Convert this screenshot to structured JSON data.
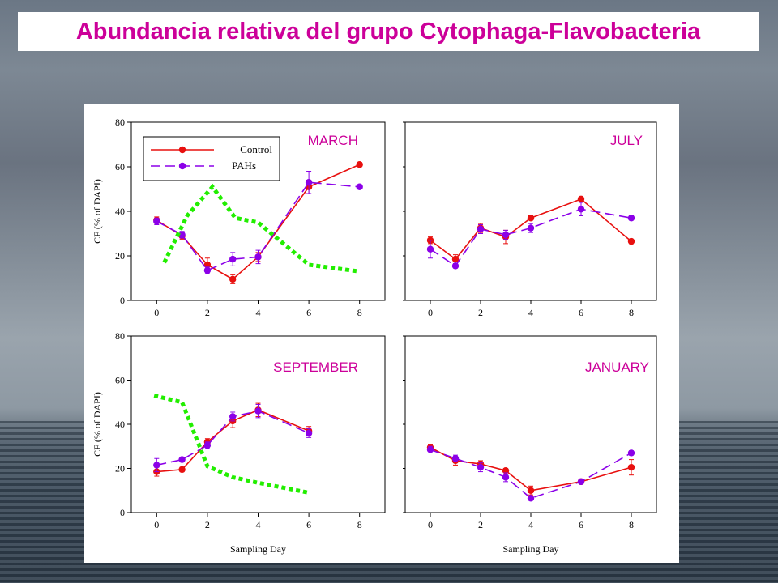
{
  "title": "Abundancia relativa del grupo Cytophaga-Flavobacteria",
  "colors": {
    "control": "#e8100f",
    "pahs": "#8b00e8",
    "dotted": "#22ee00",
    "month_label": "#cc0099"
  },
  "chart_data": [
    {
      "type": "line",
      "panel": "MARCH",
      "xlabel": "",
      "ylabel": "CF (% of DAPI)",
      "xlim": [
        -1,
        9
      ],
      "ylim": [
        0,
        80
      ],
      "xticks": [
        0,
        2,
        4,
        6,
        8
      ],
      "yticks": [
        0,
        20,
        40,
        60,
        80
      ],
      "legend": {
        "placement": "top-left",
        "entries": [
          "Control",
          "PAHs"
        ]
      },
      "series": [
        {
          "name": "Control",
          "style": "solid",
          "x": [
            0,
            1,
            2,
            3,
            4,
            6,
            8
          ],
          "y": [
            36,
            29,
            16,
            9.5,
            19.5,
            51,
            61
          ],
          "err": [
            1.5,
            1.5,
            3,
            2,
            2,
            3,
            1
          ]
        },
        {
          "name": "PAHs",
          "style": "dashed",
          "x": [
            0,
            1,
            2,
            3,
            4,
            6,
            8
          ],
          "y": [
            35.5,
            29.5,
            13.5,
            18.5,
            19.5,
            53,
            51
          ],
          "err": [
            1.5,
            1.5,
            1.5,
            3,
            3,
            5,
            1
          ]
        },
        {
          "style": "dotted",
          "x": [
            0.3,
            1.2,
            2.2,
            3.1,
            4,
            6,
            8
          ],
          "y": [
            17,
            38,
            51,
            37,
            35,
            16,
            13
          ]
        }
      ]
    },
    {
      "type": "line",
      "panel": "JULY",
      "xlabel": "",
      "ylabel": "",
      "xlim": [
        -1,
        9
      ],
      "ylim": [
        0,
        80
      ],
      "xticks": [
        0,
        2,
        4,
        6,
        8
      ],
      "yticks": [],
      "series": [
        {
          "name": "Control",
          "style": "solid",
          "x": [
            0,
            1,
            2,
            3,
            4,
            6,
            8
          ],
          "y": [
            27,
            18.5,
            32.5,
            28.5,
            37,
            45.5,
            26.5
          ],
          "err": [
            1.5,
            2,
            2,
            3,
            1,
            1,
            1
          ]
        },
        {
          "name": "PAHs",
          "style": "dashed",
          "x": [
            0,
            1,
            2,
            3,
            4,
            6,
            8
          ],
          "y": [
            23,
            15.5,
            32,
            29.5,
            32.5,
            41,
            37
          ],
          "err": [
            4,
            1,
            2,
            2,
            2,
            3,
            1
          ]
        }
      ]
    },
    {
      "type": "line",
      "panel": "SEPTEMBER",
      "xlabel": "Sampling Day",
      "ylabel": "CF (% of DAPI)",
      "xlim": [
        -1,
        9
      ],
      "ylim": [
        0,
        80
      ],
      "xticks": [
        0,
        2,
        4,
        6,
        8
      ],
      "yticks": [
        0,
        20,
        40,
        60,
        80
      ],
      "series": [
        {
          "name": "Control",
          "style": "solid",
          "x": [
            0,
            1,
            2,
            3,
            4,
            6
          ],
          "y": [
            18.5,
            19.5,
            32,
            41.5,
            46.5,
            37
          ],
          "err": [
            2,
            1,
            1.5,
            3,
            3,
            2
          ]
        },
        {
          "name": "PAHs",
          "style": "dashed",
          "x": [
            0,
            1,
            2,
            3,
            4,
            6
          ],
          "y": [
            21.5,
            24,
            30.5,
            43.5,
            46,
            36
          ],
          "err": [
            3,
            1,
            1.5,
            2,
            3,
            2
          ]
        },
        {
          "style": "dotted",
          "x": [
            -0.1,
            1,
            2,
            3,
            4,
            6
          ],
          "y": [
            53,
            50,
            21,
            16,
            13.5,
            9
          ]
        }
      ]
    },
    {
      "type": "line",
      "panel": "JANUARY",
      "xlabel": "Sampling Day",
      "ylabel": "",
      "xlim": [
        -1,
        9
      ],
      "ylim": [
        0,
        80
      ],
      "xticks": [
        0,
        2,
        4,
        6,
        8
      ],
      "yticks": [],
      "series": [
        {
          "name": "Control",
          "style": "solid",
          "x": [
            0,
            1,
            2,
            3,
            4,
            6,
            8
          ],
          "y": [
            29.5,
            23.5,
            22,
            19,
            10,
            14,
            20.5
          ],
          "err": [
            1.5,
            2,
            1.5,
            1,
            2,
            1,
            3.5
          ]
        },
        {
          "name": "PAHs",
          "style": "dashed",
          "x": [
            0,
            1,
            2,
            3,
            4,
            6,
            8
          ],
          "y": [
            28.5,
            24.5,
            20.5,
            16,
            6.5,
            14,
            27
          ],
          "err": [
            1.5,
            1.5,
            2,
            2,
            1,
            1,
            1
          ]
        }
      ]
    }
  ]
}
